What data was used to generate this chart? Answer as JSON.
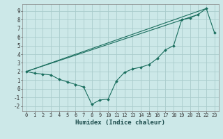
{
  "xlabel": "Humidex (Indice chaleur)",
  "background_color": "#cce8e8",
  "grid_color": "#aacccc",
  "line_color": "#1a6e5e",
  "xlim": [
    -0.5,
    23.5
  ],
  "ylim": [
    -2.6,
    9.8
  ],
  "xticks": [
    0,
    1,
    2,
    3,
    4,
    5,
    6,
    7,
    8,
    9,
    10,
    11,
    12,
    13,
    14,
    15,
    16,
    17,
    18,
    19,
    20,
    21,
    22,
    23
  ],
  "yticks": [
    -2,
    -1,
    0,
    1,
    2,
    3,
    4,
    5,
    6,
    7,
    8,
    9
  ],
  "line1_x": [
    0,
    1,
    2,
    3,
    4,
    5,
    6,
    7,
    8,
    9,
    10,
    11,
    12,
    13,
    14,
    15,
    16,
    17,
    18,
    19,
    20,
    21,
    22,
    23
  ],
  "line1_y": [
    2.0,
    1.8,
    1.7,
    1.6,
    1.1,
    0.8,
    0.5,
    0.2,
    -1.8,
    -1.3,
    -1.2,
    0.9,
    1.9,
    2.3,
    2.5,
    2.8,
    3.5,
    4.5,
    5.0,
    8.0,
    8.2,
    8.6,
    9.3,
    6.5
  ],
  "line2_x": [
    0,
    22
  ],
  "line2_y": [
    2.0,
    9.3
  ],
  "line3_x": [
    0,
    21
  ],
  "line3_y": [
    2.0,
    8.6
  ],
  "marker_style": "D",
  "marker_size": 2.0,
  "xlabel_fontsize": 6.5,
  "tick_fontsize": 5.0
}
